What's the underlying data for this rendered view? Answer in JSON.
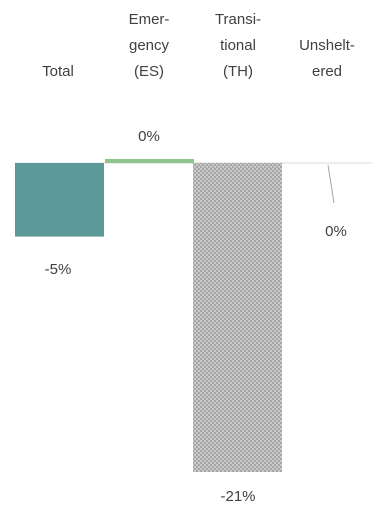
{
  "chart_data": {
    "type": "bar",
    "categories": [
      [
        "Total"
      ],
      [
        "Emer-",
        "gency",
        "(ES)"
      ],
      [
        "Transi-",
        "tional",
        "(TH)"
      ],
      [
        "Unshelt-",
        "ered"
      ]
    ],
    "values": [
      -5,
      0,
      -21,
      0
    ],
    "data_labels": [
      "-5%",
      "0%",
      "-21%",
      "0%"
    ],
    "ylim": [
      -21,
      0
    ],
    "legend": "none",
    "grid": false,
    "colors": {
      "total": "#5b9a98",
      "emergency": "#8fc48c",
      "transitional": "#a6a6a6",
      "transitional_dots": "#ffffff",
      "axis": "#d9d9d9",
      "leader": "#a6a6a6",
      "text": "#404040"
    }
  }
}
